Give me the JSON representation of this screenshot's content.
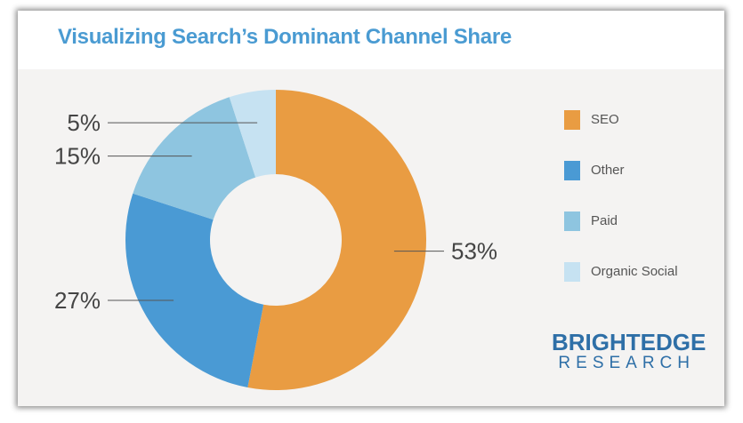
{
  "header": {
    "title": "Visualizing Search’s Dominant Channel Share"
  },
  "chart_data": {
    "type": "pie",
    "donut": true,
    "title": "Visualizing Search’s Dominant Channel Share",
    "series": [
      {
        "name": "SEO",
        "value": 53,
        "label": "53%",
        "color": "#e99c42"
      },
      {
        "name": "Other",
        "value": 27,
        "label": "27%",
        "color": "#4a9ad4"
      },
      {
        "name": "Paid",
        "value": 15,
        "label": "15%",
        "color": "#8ec5e0"
      },
      {
        "name": "Organic Social",
        "value": 5,
        "label": "5%",
        "color": "#c6e2f2"
      }
    ],
    "start": "top",
    "direction": "clockwise",
    "legend_position": "right",
    "data_labels": "outside with leader lines"
  },
  "branding": {
    "name": "BRIGHTEDGE",
    "sub": "RESEARCH",
    "color": "#2e6fa7"
  },
  "colors": {
    "title": "#4a9bd2",
    "background": "#f4f3f2",
    "label_text": "#444444",
    "legend_text": "#555555"
  }
}
